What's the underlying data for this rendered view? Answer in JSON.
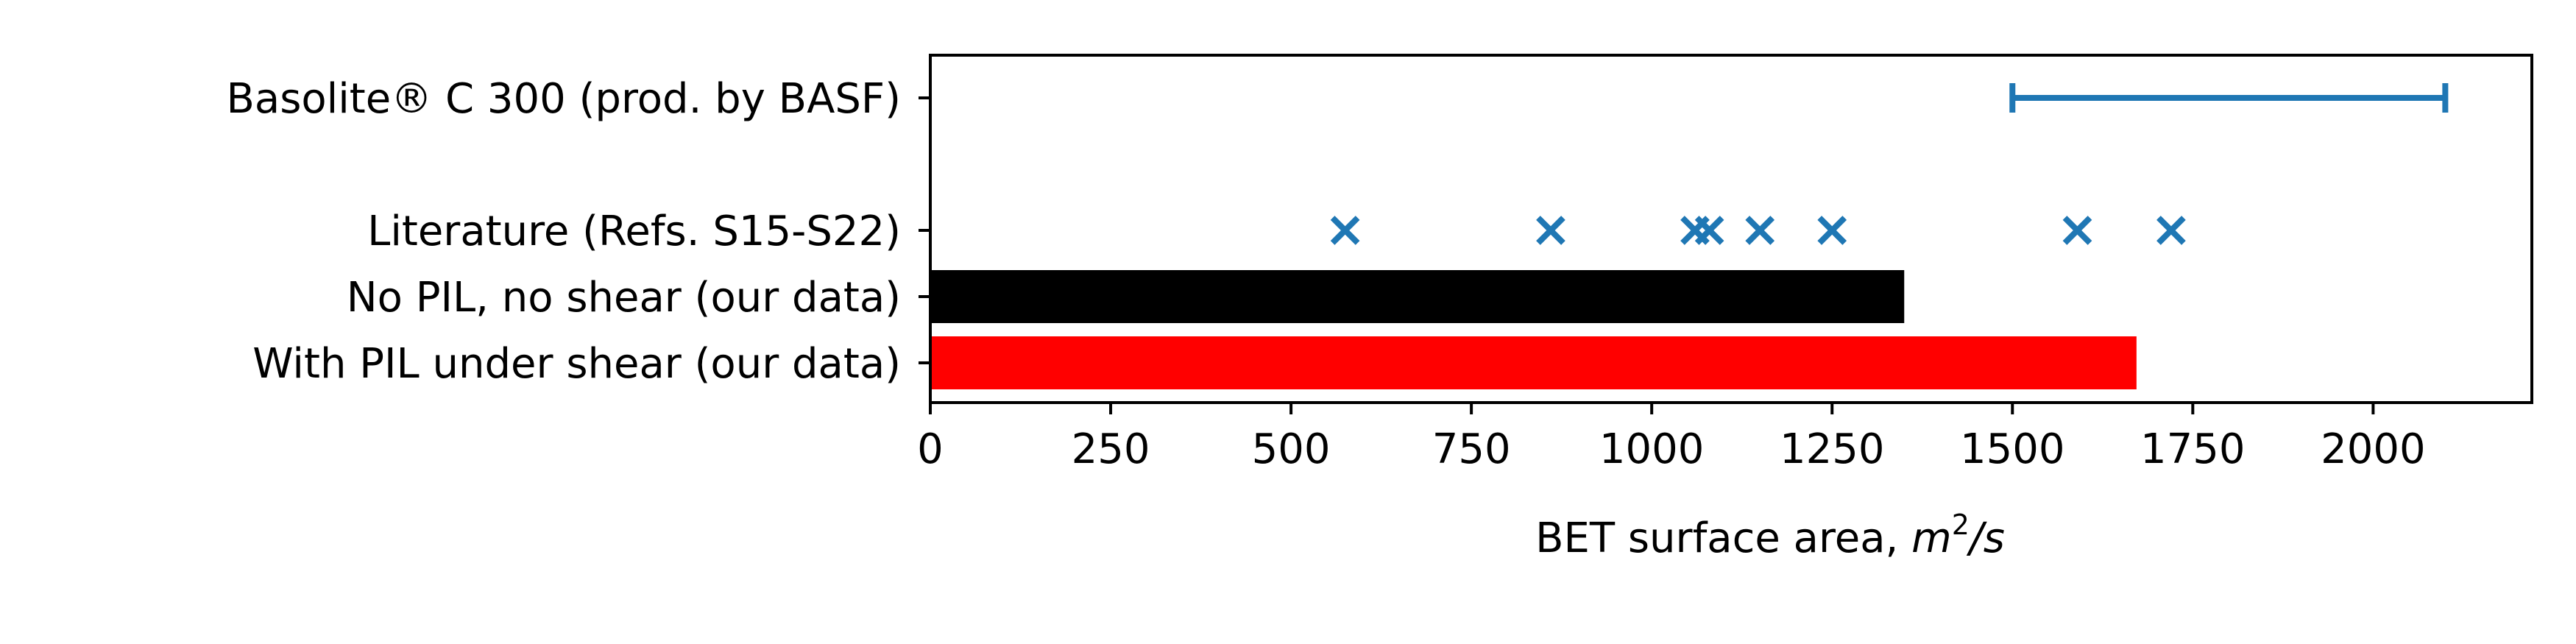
{
  "chart_data": {
    "type": "bar",
    "xlabel_text": "BET surface area, ",
    "xlabel_unit": "m",
    "xlabel_power": "2",
    "xlabel_tail": "/s",
    "xlim": [
      0,
      2220
    ],
    "xticks": [
      0,
      250,
      500,
      750,
      1000,
      1250,
      1500,
      1750,
      2000
    ],
    "categories": [
      "Basolite® C 300 (prod. by BASF)",
      "Literature (Refs. S15-S22)",
      "No PIL, no shear (our data)",
      "With PIL under shear (our data)"
    ],
    "range_bar": {
      "category": "Basolite® C 300 (prod. by BASF)",
      "min": 1500,
      "max": 2100,
      "color": "#1f77b4"
    },
    "literature_points": {
      "category": "Literature (Refs. S15-S22)",
      "values": [
        575,
        860,
        1060,
        1080,
        1150,
        1250,
        1590,
        1720
      ],
      "marker": "x",
      "color": "#1f77b4"
    },
    "bars": [
      {
        "category": "No PIL, no shear (our data)",
        "value": 1350,
        "color": "#000000"
      },
      {
        "category": "With PIL under shear (our data)",
        "value": 1672,
        "color": "#ff0000"
      }
    ]
  }
}
